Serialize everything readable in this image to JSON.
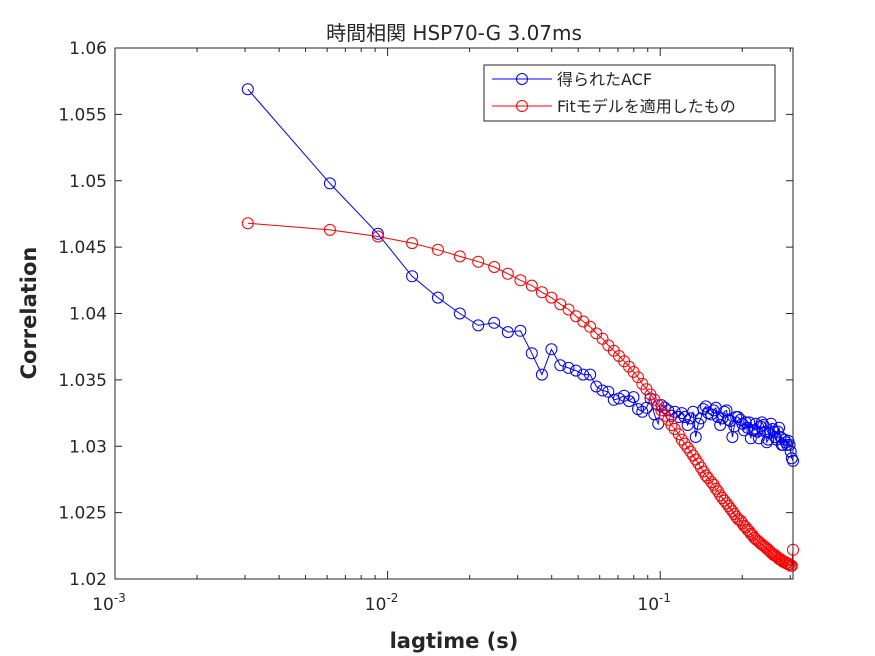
{
  "chart_data": {
    "type": "line",
    "title": "時間相関 HSP70-G 3.07ms",
    "xlabel": "lagtime (s)",
    "ylabel": "Correlation",
    "xscale": "log",
    "xlim": [
      0.001,
      0.307
    ],
    "ylim": [
      1.02,
      1.06
    ],
    "xticks": [
      {
        "value": 0.001,
        "base": "10",
        "exp": "-3"
      },
      {
        "value": 0.01,
        "base": "10",
        "exp": "-2"
      },
      {
        "value": 0.1,
        "base": "10",
        "exp": "-1"
      }
    ],
    "yticks": [
      "1.02",
      "1.025",
      "1.03",
      "1.035",
      "1.04",
      "1.045",
      "1.05",
      "1.055",
      "1.06"
    ],
    "grid": false,
    "legend_position": "top-right",
    "series": [
      {
        "name": "得られたACF",
        "color": "#0000ff",
        "marker": "circle",
        "x": [
          0.00307,
          0.00614,
          0.00921,
          0.0123,
          0.0153,
          0.0184,
          0.0215,
          0.0246,
          0.0276,
          0.0307,
          0.0338,
          0.0368,
          0.0399,
          0.043,
          0.0461,
          0.0491,
          0.0522,
          0.0553,
          0.0583,
          0.0614,
          0.0645,
          0.0676,
          0.0706,
          0.0737,
          0.0768,
          0.0798,
          0.0829,
          0.086,
          0.0891,
          0.0921,
          0.0952,
          0.0983,
          0.101,
          0.104,
          0.107,
          0.11,
          0.113,
          0.117,
          0.12,
          0.123,
          0.126,
          0.129,
          0.132,
          0.135,
          0.138,
          0.141,
          0.144,
          0.147,
          0.15,
          0.154,
          0.157,
          0.16,
          0.163,
          0.166,
          0.169,
          0.172,
          0.175,
          0.178,
          0.181,
          0.184,
          0.187,
          0.19,
          0.193,
          0.197,
          0.2,
          0.203,
          0.206,
          0.209,
          0.212,
          0.215,
          0.218,
          0.221,
          0.224,
          0.227,
          0.23,
          0.233,
          0.236,
          0.239,
          0.243,
          0.246,
          0.249,
          0.252,
          0.255,
          0.258,
          0.261,
          0.264,
          0.267,
          0.27,
          0.273,
          0.276,
          0.279,
          0.282,
          0.286,
          0.289,
          0.292,
          0.295,
          0.298,
          0.301,
          0.304,
          0.307
        ],
        "y": [
          1.0569,
          1.0498,
          1.046,
          1.0428,
          1.0412,
          1.04,
          1.0391,
          1.0393,
          1.0386,
          1.0387,
          1.037,
          1.0354,
          1.0373,
          1.0361,
          1.0359,
          1.0357,
          1.0354,
          1.0354,
          1.0345,
          1.0342,
          1.0341,
          1.0335,
          1.0336,
          1.0338,
          1.0334,
          1.0337,
          1.0328,
          1.0326,
          1.0329,
          1.0336,
          1.0324,
          1.0317,
          1.0331,
          1.0329,
          1.0327,
          1.0323,
          1.0326,
          1.0322,
          1.0325,
          1.0322,
          1.0316,
          1.0321,
          1.0326,
          1.0307,
          1.0317,
          1.0321,
          1.0328,
          1.033,
          1.0325,
          1.0324,
          1.0327,
          1.0329,
          1.0322,
          1.0316,
          1.0321,
          1.0326,
          1.0327,
          1.032,
          1.0319,
          1.0307,
          1.0315,
          1.0322,
          1.0322,
          1.032,
          1.0317,
          1.0312,
          1.0318,
          1.0314,
          1.0318,
          1.0306,
          1.0312,
          1.0312,
          1.0317,
          1.0311,
          1.0306,
          1.0315,
          1.0318,
          1.0316,
          1.0311,
          1.0303,
          1.0305,
          1.031,
          1.0317,
          1.0313,
          1.0311,
          1.0307,
          1.0305,
          1.0311,
          1.0314,
          1.0307,
          1.0301,
          1.0301,
          1.0305,
          1.0303,
          1.0301,
          1.0304,
          1.0301,
          1.0296,
          1.0291,
          1.0289
        ]
      },
      {
        "name": "Fitモデルを適用したもの",
        "color": "#ff0000",
        "marker": "circle",
        "x": [
          0.00307,
          0.00614,
          0.00921,
          0.0123,
          0.0153,
          0.0184,
          0.0215,
          0.0246,
          0.0276,
          0.0307,
          0.0338,
          0.0368,
          0.0399,
          0.043,
          0.0461,
          0.0491,
          0.0522,
          0.0553,
          0.0583,
          0.0614,
          0.0645,
          0.0676,
          0.0706,
          0.0737,
          0.0768,
          0.0798,
          0.0829,
          0.086,
          0.0891,
          0.0921,
          0.0952,
          0.0983,
          0.101,
          0.104,
          0.107,
          0.11,
          0.113,
          0.117,
          0.12,
          0.123,
          0.126,
          0.129,
          0.132,
          0.135,
          0.138,
          0.141,
          0.144,
          0.147,
          0.15,
          0.154,
          0.157,
          0.16,
          0.163,
          0.166,
          0.169,
          0.172,
          0.175,
          0.178,
          0.181,
          0.184,
          0.187,
          0.19,
          0.193,
          0.197,
          0.2,
          0.203,
          0.206,
          0.209,
          0.212,
          0.215,
          0.218,
          0.221,
          0.224,
          0.227,
          0.23,
          0.233,
          0.236,
          0.239,
          0.243,
          0.246,
          0.249,
          0.252,
          0.255,
          0.258,
          0.261,
          0.264,
          0.267,
          0.27,
          0.273,
          0.276,
          0.279,
          0.282,
          0.286,
          0.289,
          0.292,
          0.295,
          0.298,
          0.301,
          0.304,
          0.307
        ],
        "y": [
          1.0468,
          1.0463,
          1.0458,
          1.0453,
          1.0448,
          1.0443,
          1.0439,
          1.0435,
          1.043,
          1.0425,
          1.0421,
          1.0416,
          1.0412,
          1.0407,
          1.0403,
          1.0398,
          1.0394,
          1.039,
          1.0385,
          1.0381,
          1.0376,
          1.0372,
          1.0368,
          1.0364,
          1.036,
          1.0356,
          1.0352,
          1.0347,
          1.0343,
          1.0339,
          1.0335,
          1.0331,
          1.0327,
          1.0323,
          1.032,
          1.0316,
          1.0313,
          1.0309,
          1.0305,
          1.0302,
          1.0299,
          1.0296,
          1.0293,
          1.029,
          1.0287,
          1.0284,
          1.0281,
          1.0278,
          1.0276,
          1.0273,
          1.0271,
          1.0268,
          1.0266,
          1.0263,
          1.0261,
          1.0259,
          1.0257,
          1.0255,
          1.0253,
          1.0251,
          1.0249,
          1.0247,
          1.0245,
          1.0244,
          1.0242,
          1.024,
          1.0239,
          1.0237,
          1.0236,
          1.0234,
          1.0233,
          1.0231,
          1.023,
          1.0229,
          1.0228,
          1.0227,
          1.0226,
          1.0225,
          1.0224,
          1.0223,
          1.0222,
          1.0221,
          1.022,
          1.0219,
          1.0218,
          1.0218,
          1.0217,
          1.0216,
          1.0215,
          1.0215,
          1.0214,
          1.0213,
          1.0213,
          1.0212,
          1.0212,
          1.0211,
          1.0211,
          1.021,
          1.021,
          1.0222
        ]
      }
    ]
  }
}
